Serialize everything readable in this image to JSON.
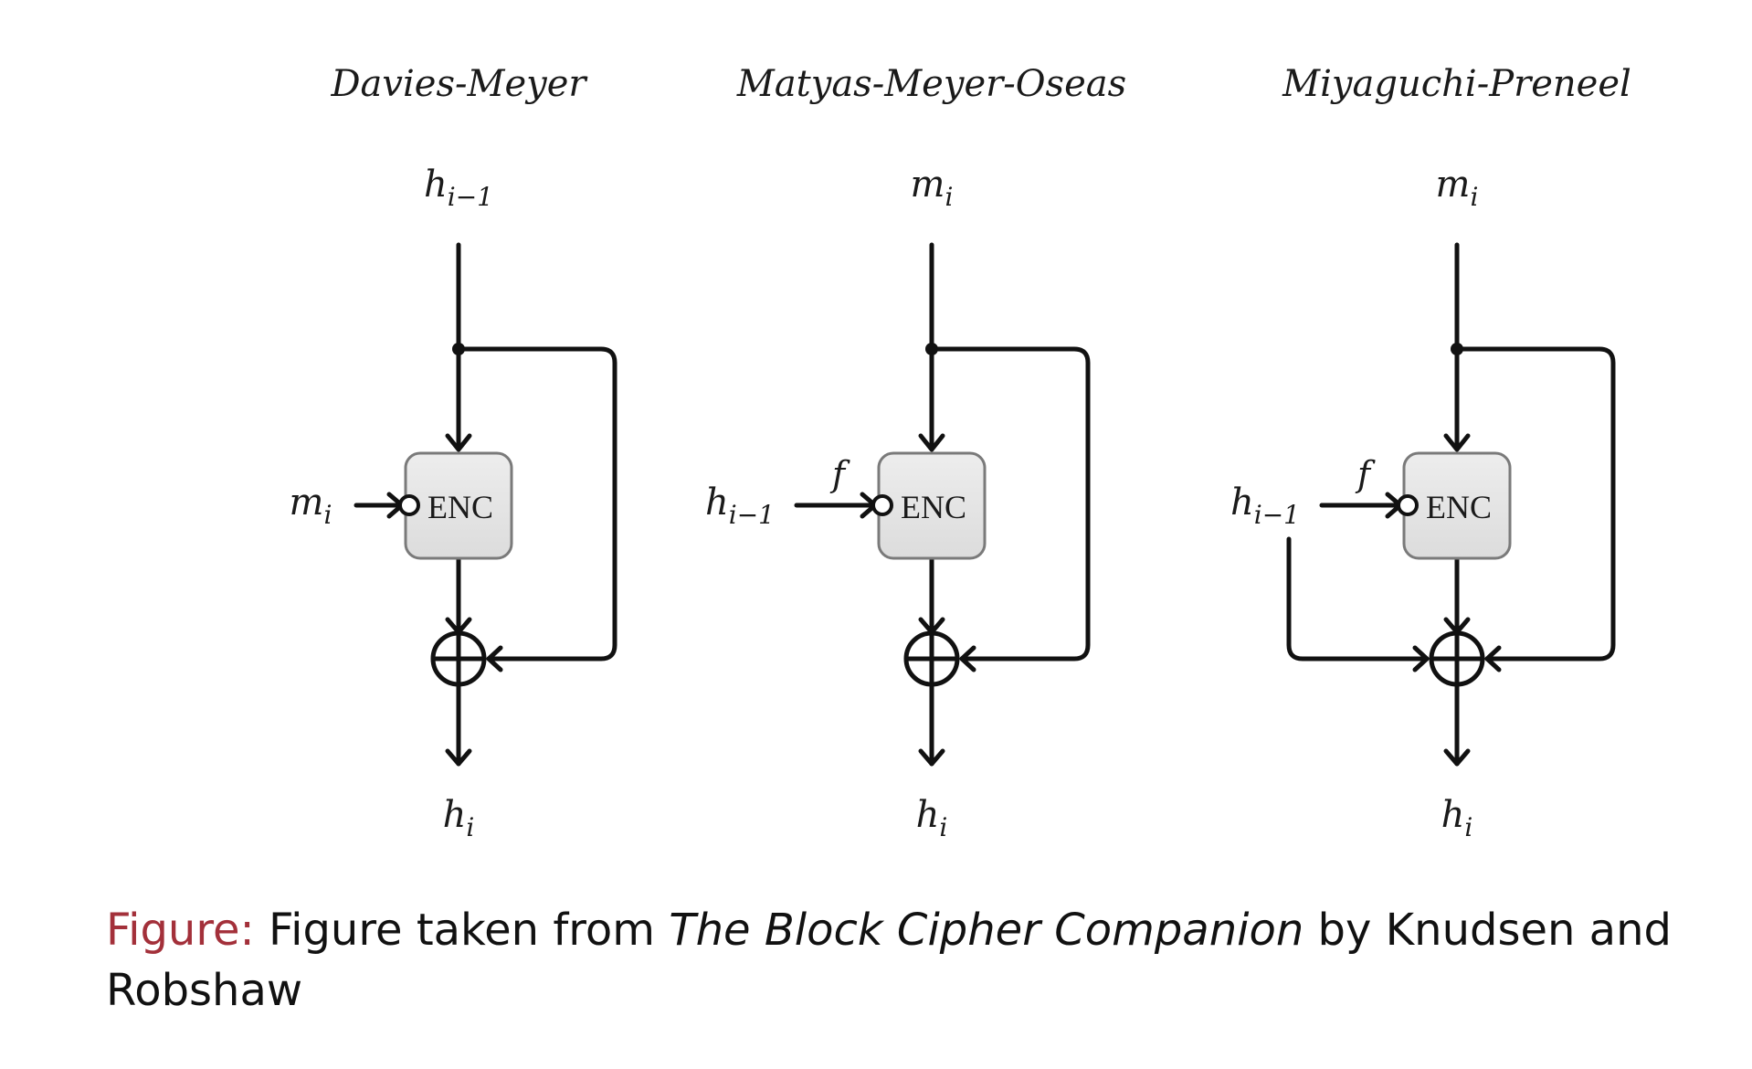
{
  "schemes": [
    {
      "name": "Davies-Meyer",
      "top_input": {
        "base": "h",
        "sub": "i−1"
      },
      "side_input": {
        "base": "m",
        "sub": "i"
      },
      "side_tag": "",
      "block_label": "ENC",
      "output": {
        "base": "h",
        "sub": "i"
      }
    },
    {
      "name": "Matyas-Meyer-Oseas",
      "top_input": {
        "base": "m",
        "sub": "i"
      },
      "side_input": {
        "base": "h",
        "sub": "i−1"
      },
      "side_tag": "f",
      "block_label": "ENC",
      "output": {
        "base": "h",
        "sub": "i"
      }
    },
    {
      "name": "Miyaguchi-Preneel",
      "top_input": {
        "base": "m",
        "sub": "i"
      },
      "side_input": {
        "base": "h",
        "sub": "i−1"
      },
      "side_tag": "f",
      "block_label": "ENC",
      "output": {
        "base": "h",
        "sub": "i"
      }
    }
  ],
  "caption": {
    "lead": "Figure:",
    "text_before": "Figure taken from",
    "book_title": "The Block Cipher Companion",
    "text_after": "by Knudsen and Robshaw"
  },
  "colors": {
    "caption_lead": "#a3303a",
    "block_fill": "#e6e6e6",
    "block_stroke": "#7a7a7a",
    "line": "#111111"
  }
}
